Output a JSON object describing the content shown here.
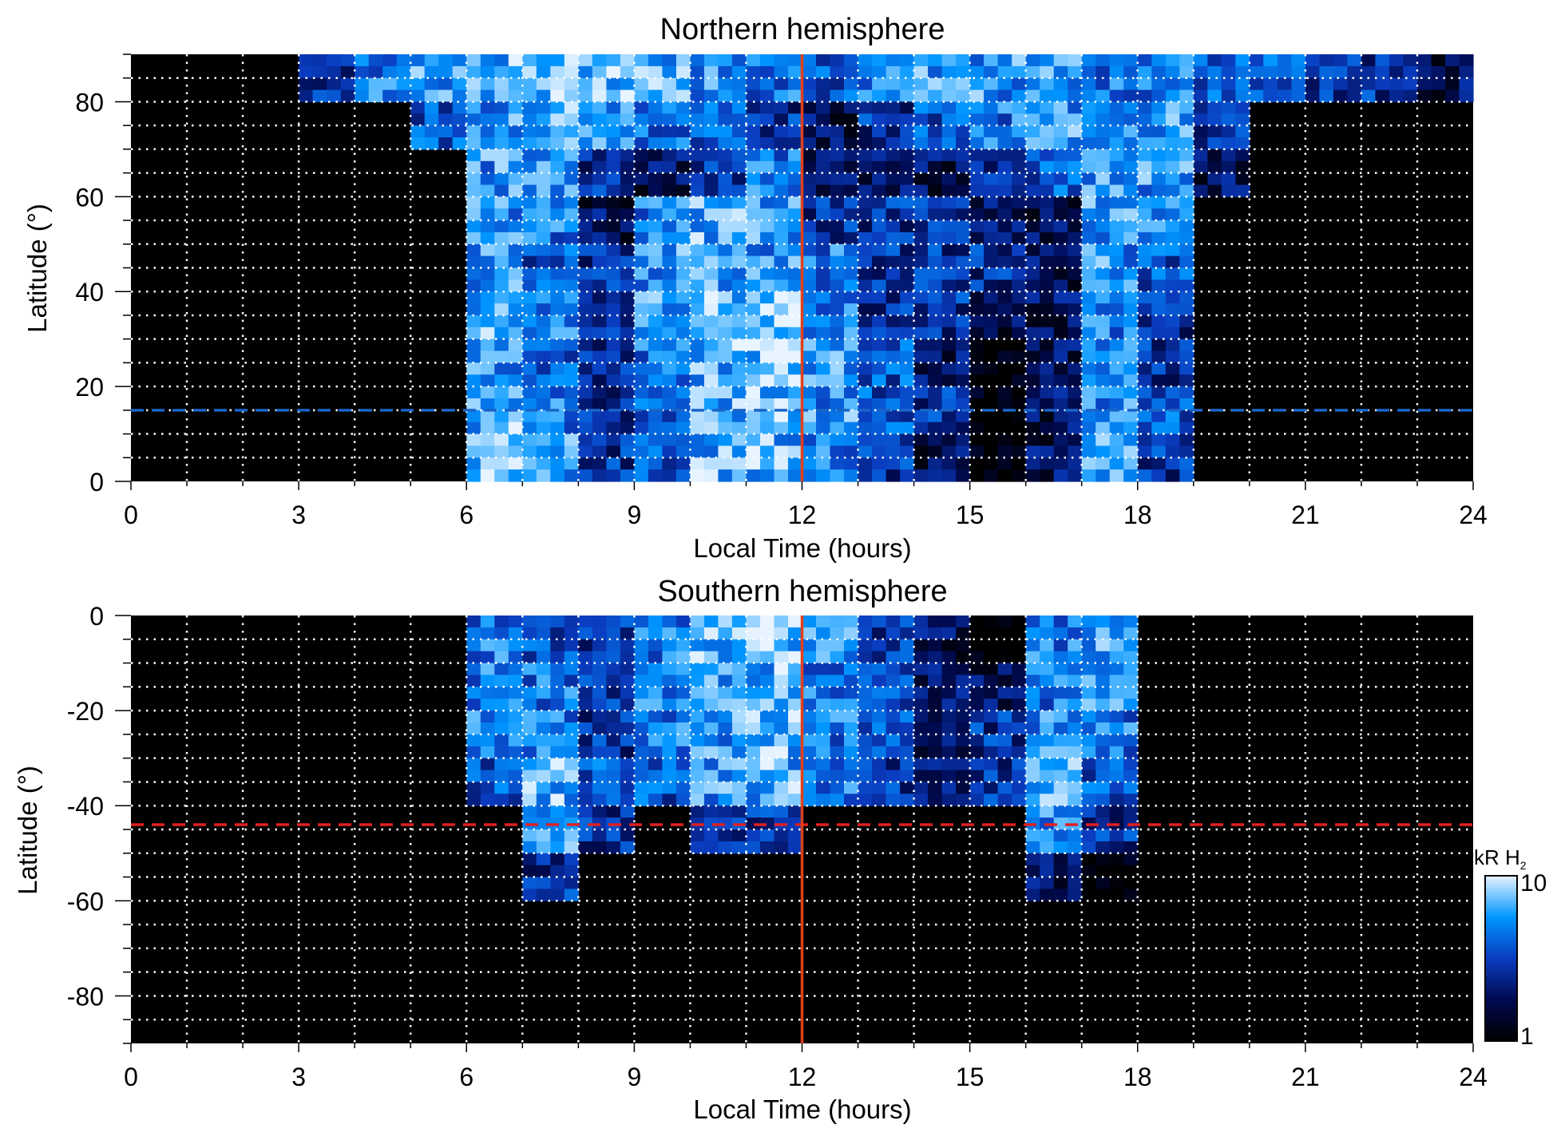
{
  "chart_data": [
    {
      "type": "heatmap",
      "title": "Northern hemisphere",
      "xlabel": "Local Time (hours)",
      "ylabel": "Latitude (°)",
      "xlim": [
        0,
        24
      ],
      "ylim": [
        0,
        90
      ],
      "xticks": [
        "0",
        "3",
        "6",
        "9",
        "12",
        "15",
        "18",
        "21",
        "24"
      ],
      "yticks": [
        "0",
        "20",
        "40",
        "60",
        "80"
      ],
      "grid": true,
      "x_bin_hours": 1,
      "lat_bins_top_to_bottom": [
        "80-90",
        "70-80",
        "60-70",
        "50-60",
        "40-50",
        "30-40",
        "20-30",
        "10-20",
        "0-10"
      ],
      "values_kR": [
        [
          0,
          0,
          0,
          3,
          5,
          6,
          7,
          7,
          8,
          7,
          6,
          5,
          4,
          5,
          6,
          6,
          6,
          5,
          5,
          4,
          4,
          3,
          3,
          2
        ],
        [
          0,
          0,
          0,
          0,
          0,
          4,
          6,
          7,
          6,
          5,
          4,
          3,
          2,
          3,
          4,
          5,
          6,
          6,
          6,
          3,
          0,
          0,
          0,
          0
        ],
        [
          0,
          0,
          0,
          0,
          0,
          0,
          6,
          6,
          3,
          2,
          3,
          5,
          2,
          2,
          2,
          3,
          4,
          6,
          6,
          2,
          0,
          0,
          0,
          0
        ],
        [
          0,
          0,
          0,
          0,
          0,
          0,
          6,
          5,
          2,
          5,
          7,
          6,
          3,
          3,
          3,
          2,
          2,
          6,
          5,
          0,
          0,
          0,
          0,
          0
        ],
        [
          0,
          0,
          0,
          0,
          0,
          0,
          6,
          4,
          3,
          6,
          6,
          6,
          5,
          3,
          3,
          3,
          2,
          6,
          4,
          0,
          0,
          0,
          0,
          0
        ],
        [
          0,
          0,
          0,
          0,
          0,
          0,
          7,
          5,
          3,
          6,
          7,
          8,
          5,
          3,
          3,
          2,
          2,
          5,
          3,
          0,
          0,
          0,
          0,
          0
        ],
        [
          0,
          0,
          0,
          0,
          0,
          0,
          6,
          4,
          3,
          5,
          7,
          8,
          6,
          4,
          2,
          1,
          2,
          5,
          3,
          0,
          0,
          0,
          0,
          0
        ],
        [
          0,
          0,
          0,
          0,
          0,
          0,
          7,
          5,
          3,
          4,
          7,
          8,
          6,
          4,
          3,
          1,
          2,
          6,
          4,
          0,
          0,
          0,
          0,
          0
        ],
        [
          0,
          0,
          0,
          0,
          0,
          0,
          7,
          6,
          3,
          4,
          7,
          7,
          5,
          3,
          2,
          1,
          2,
          6,
          3,
          0,
          0,
          0,
          0,
          0
        ]
      ],
      "vertical_line": {
        "x": 12,
        "color": "#e0401a"
      },
      "dashed_line": {
        "y": 15,
        "color": "#1a64c8"
      }
    },
    {
      "type": "heatmap",
      "title": "Southern hemisphere",
      "xlabel": "Local Time (hours)",
      "ylabel": "Latitude (°)",
      "xlim": [
        0,
        24
      ],
      "ylim": [
        -90,
        0
      ],
      "xticks": [
        "0",
        "3",
        "6",
        "9",
        "12",
        "15",
        "18",
        "21",
        "24"
      ],
      "yticks": [
        "0",
        "-20",
        "-40",
        "-60",
        "-80"
      ],
      "grid": true,
      "x_bin_hours": 1,
      "lat_bins_top_to_bottom": [
        "0--10",
        "-10--20",
        "-20--30",
        "-30--40",
        "-40--50",
        "-50--60",
        "-60--70",
        "-70--80",
        "-80--90"
      ],
      "values_kR": [
        [
          0,
          0,
          0,
          0,
          0,
          0,
          5,
          4,
          3,
          5,
          7,
          8,
          6,
          3,
          2,
          1,
          5,
          6,
          0,
          0,
          0,
          0,
          0,
          0
        ],
        [
          0,
          0,
          0,
          0,
          0,
          0,
          5,
          5,
          3,
          5,
          6,
          7,
          5,
          4,
          2,
          2,
          5,
          6,
          0,
          0,
          0,
          0,
          0,
          0
        ],
        [
          0,
          0,
          0,
          0,
          0,
          0,
          5,
          5,
          3,
          5,
          6,
          7,
          5,
          4,
          2,
          3,
          6,
          5,
          0,
          0,
          0,
          0,
          0,
          0
        ],
        [
          0,
          0,
          0,
          0,
          0,
          0,
          4,
          7,
          4,
          4,
          6,
          7,
          5,
          3,
          2,
          3,
          7,
          4,
          0,
          0,
          0,
          0,
          0,
          0
        ],
        [
          0,
          0,
          0,
          0,
          0,
          0,
          0,
          6,
          3,
          0,
          3,
          3,
          0,
          0,
          0,
          0,
          6,
          3,
          0,
          0,
          0,
          0,
          0,
          0
        ],
        [
          0,
          0,
          0,
          0,
          0,
          0,
          0,
          3,
          0,
          0,
          0,
          0,
          0,
          0,
          0,
          0,
          2,
          1,
          0,
          0,
          0,
          0,
          0,
          0
        ],
        [
          0,
          0,
          0,
          0,
          0,
          0,
          0,
          0,
          0,
          0,
          0,
          0,
          0,
          0,
          0,
          0,
          0,
          0,
          0,
          0,
          0,
          0,
          0,
          0
        ],
        [
          0,
          0,
          0,
          0,
          0,
          0,
          0,
          0,
          0,
          0,
          0,
          0,
          0,
          0,
          0,
          0,
          0,
          0,
          0,
          0,
          0,
          0,
          0,
          0
        ],
        [
          0,
          0,
          0,
          0,
          0,
          0,
          0,
          0,
          0,
          0,
          0,
          0,
          0,
          0,
          0,
          0,
          0,
          0,
          0,
          0,
          0,
          0,
          0,
          0
        ]
      ],
      "vertical_line": {
        "x": 12,
        "color": "#e0401a"
      },
      "dashed_line": {
        "y": -44,
        "color": "#e02020"
      }
    }
  ],
  "colorbar": {
    "label": "kR H",
    "label_subscript": "2",
    "min_label": "1",
    "max_label": "10",
    "scale": "log",
    "colors": [
      "#000000",
      "#000a50",
      "#0a3cc0",
      "#0096ff",
      "#e8f4ff"
    ]
  }
}
